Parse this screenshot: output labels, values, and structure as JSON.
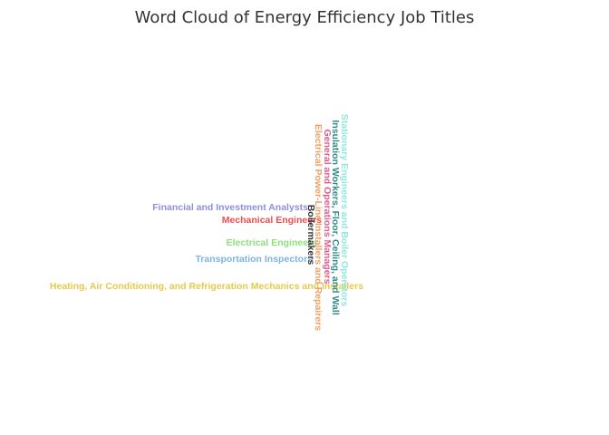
{
  "chart_data": {
    "type": "word_cloud",
    "title": "Word Cloud of Energy Efficiency Job Titles",
    "words": [
      {
        "text": "Financial and Investment Analysts",
        "color": "#8E8EE0",
        "orientation": "horizontal"
      },
      {
        "text": "Mechanical Engineers",
        "color": "#F04D4D",
        "orientation": "horizontal"
      },
      {
        "text": "Electrical Engineers",
        "color": "#8EE07C",
        "orientation": "horizontal"
      },
      {
        "text": "Transportation Inspectors",
        "color": "#7BB4E6",
        "orientation": "horizontal"
      },
      {
        "text": "Heating, Air Conditioning, and Refrigeration Mechanics and Installers",
        "color": "#E8C94A",
        "orientation": "horizontal"
      },
      {
        "text": "Stationary Engineers and Boiler Operators",
        "color": "#8EE8E0",
        "orientation": "vertical"
      },
      {
        "text": "Insulation Workers, Floor, Ceiling, and Wall",
        "color": "#2E8B8B",
        "orientation": "vertical"
      },
      {
        "text": "General and Operations Managers",
        "color": "#E05C8A",
        "orientation": "vertical"
      },
      {
        "text": "Electrical Power-Line Installers and Repairers",
        "color": "#F0A060",
        "orientation": "vertical"
      },
      {
        "text": "Boilermakers",
        "color": "#333333",
        "orientation": "vertical"
      }
    ]
  }
}
